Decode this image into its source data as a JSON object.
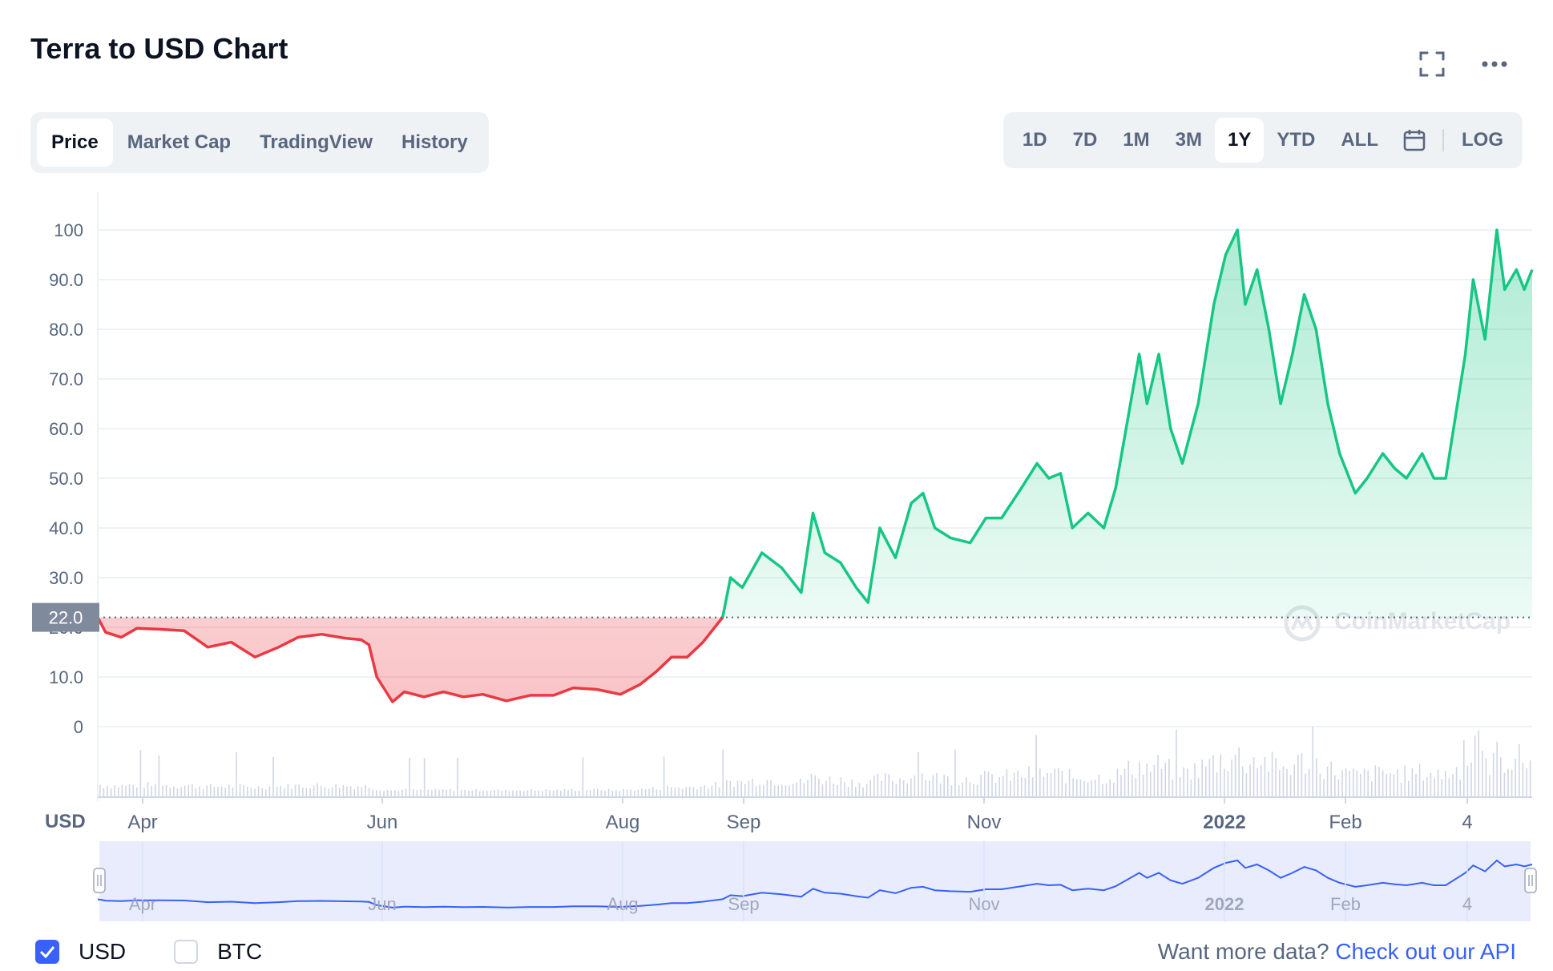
{
  "header": {
    "title": "Terra to USD Chart"
  },
  "tabs": [
    "Price",
    "Market Cap",
    "TradingView",
    "History"
  ],
  "active_tab": "Price",
  "ranges": [
    "1D",
    "7D",
    "1M",
    "3M",
    "1Y",
    "YTD",
    "ALL"
  ],
  "active_range": "1Y",
  "log_label": "LOG",
  "icons": {
    "fullscreen": "fullscreen-icon",
    "more": "more-icon",
    "calendar": "calendar-icon"
  },
  "colors": {
    "up": "#16c784",
    "down": "#ea3943",
    "accent": "#3861fb",
    "navigator_fill": "#e8ecfd"
  },
  "currency_label": "USD",
  "current_price_label": "22.0",
  "watermark": "CoinMarketCap",
  "legend": {
    "usd": "USD",
    "btc": "BTC",
    "usd_checked": true,
    "btc_checked": false
  },
  "footer": {
    "prefix": "Want more data?",
    "link": "Check out our API"
  },
  "chart_data": {
    "type": "area",
    "title": "Terra to USD Chart",
    "x_labels": [
      "Apr",
      "Jun",
      "Aug",
      "Sep",
      "Nov",
      "2022",
      "Feb",
      "4"
    ],
    "y_ticks": [
      "0",
      "10.0",
      "20.0",
      "30.0",
      "40.0",
      "50.0",
      "60.0",
      "70.0",
      "80.0",
      "90.0",
      "100"
    ],
    "ylim": [
      0,
      100
    ],
    "baseline": 22.0,
    "grid": true,
    "x_range": [
      "2021-03-18",
      "2022-03-18"
    ],
    "series": [
      {
        "values": [
          [
            "2021-03-18",
            22
          ],
          [
            "2021-03-20",
            19
          ],
          [
            "2021-03-24",
            18
          ],
          [
            "2021-03-28",
            19.8
          ],
          [
            "2021-04-03",
            19.6
          ],
          [
            "2021-04-09",
            19.3
          ],
          [
            "2021-04-15",
            16
          ],
          [
            "2021-04-21",
            17
          ],
          [
            "2021-04-27",
            14
          ],
          [
            "2021-05-03",
            16
          ],
          [
            "2021-05-08",
            18
          ],
          [
            "2021-05-14",
            18.6
          ],
          [
            "2021-05-20",
            17.8
          ],
          [
            "2021-05-24",
            17.5
          ],
          [
            "2021-05-26",
            16.5
          ],
          [
            "2021-05-28",
            10
          ],
          [
            "2021-06-01",
            5
          ],
          [
            "2021-06-04",
            7
          ],
          [
            "2021-06-09",
            6
          ],
          [
            "2021-06-14",
            7
          ],
          [
            "2021-06-19",
            6
          ],
          [
            "2021-06-24",
            6.5
          ],
          [
            "2021-06-30",
            5.2
          ],
          [
            "2021-07-06",
            6.3
          ],
          [
            "2021-07-12",
            6.3
          ],
          [
            "2021-07-17",
            7.8
          ],
          [
            "2021-07-23",
            7.5
          ],
          [
            "2021-07-29",
            6.5
          ],
          [
            "2021-08-03",
            8.5
          ],
          [
            "2021-08-07",
            11
          ],
          [
            "2021-08-11",
            14
          ],
          [
            "2021-08-15",
            14
          ],
          [
            "2021-08-19",
            17
          ],
          [
            "2021-08-22",
            20
          ],
          [
            "2021-08-24",
            22
          ],
          [
            "2021-08-26",
            30
          ],
          [
            "2021-08-29",
            28
          ],
          [
            "2021-09-03",
            35
          ],
          [
            "2021-09-08",
            32
          ],
          [
            "2021-09-13",
            27
          ],
          [
            "2021-09-16",
            43
          ],
          [
            "2021-09-19",
            35
          ],
          [
            "2021-09-23",
            33
          ],
          [
            "2021-09-27",
            28
          ],
          [
            "2021-09-30",
            25
          ],
          [
            "2021-10-03",
            40
          ],
          [
            "2021-10-07",
            34
          ],
          [
            "2021-10-11",
            45
          ],
          [
            "2021-10-14",
            47
          ],
          [
            "2021-10-17",
            40
          ],
          [
            "2021-10-21",
            38
          ],
          [
            "2021-10-26",
            37
          ],
          [
            "2021-10-30",
            42
          ],
          [
            "2021-11-03",
            42
          ],
          [
            "2021-11-08",
            48
          ],
          [
            "2021-11-12",
            53
          ],
          [
            "2021-11-15",
            50
          ],
          [
            "2021-11-18",
            51
          ],
          [
            "2021-11-21",
            40
          ],
          [
            "2021-11-25",
            43
          ],
          [
            "2021-11-29",
            40
          ],
          [
            "2021-12-02",
            48
          ],
          [
            "2021-12-06",
            66
          ],
          [
            "2021-12-08",
            75
          ],
          [
            "2021-12-10",
            65
          ],
          [
            "2021-12-13",
            75
          ],
          [
            "2021-12-16",
            60
          ],
          [
            "2021-12-19",
            53
          ],
          [
            "2021-12-23",
            65
          ],
          [
            "2021-12-27",
            85
          ],
          [
            "2021-12-30",
            95
          ],
          [
            "2022-01-02",
            100
          ],
          [
            "2022-01-04",
            85
          ],
          [
            "2022-01-07",
            92
          ],
          [
            "2022-01-10",
            80
          ],
          [
            "2022-01-13",
            65
          ],
          [
            "2022-01-16",
            75
          ],
          [
            "2022-01-19",
            87
          ],
          [
            "2022-01-22",
            80
          ],
          [
            "2022-01-25",
            65
          ],
          [
            "2022-01-28",
            55
          ],
          [
            "2022-02-01",
            47
          ],
          [
            "2022-02-04",
            50
          ],
          [
            "2022-02-08",
            55
          ],
          [
            "2022-02-11",
            52
          ],
          [
            "2022-02-14",
            50
          ],
          [
            "2022-02-18",
            55
          ],
          [
            "2022-02-21",
            50
          ],
          [
            "2022-02-24",
            50
          ],
          [
            "2022-02-27",
            65
          ],
          [
            "2022-03-01",
            75
          ],
          [
            "2022-03-03",
            90
          ],
          [
            "2022-03-06",
            78
          ],
          [
            "2022-03-09",
            100
          ],
          [
            "2022-03-11",
            88
          ],
          [
            "2022-03-14",
            92
          ],
          [
            "2022-03-16",
            88
          ],
          [
            "2022-03-18",
            92
          ]
        ]
      }
    ]
  }
}
